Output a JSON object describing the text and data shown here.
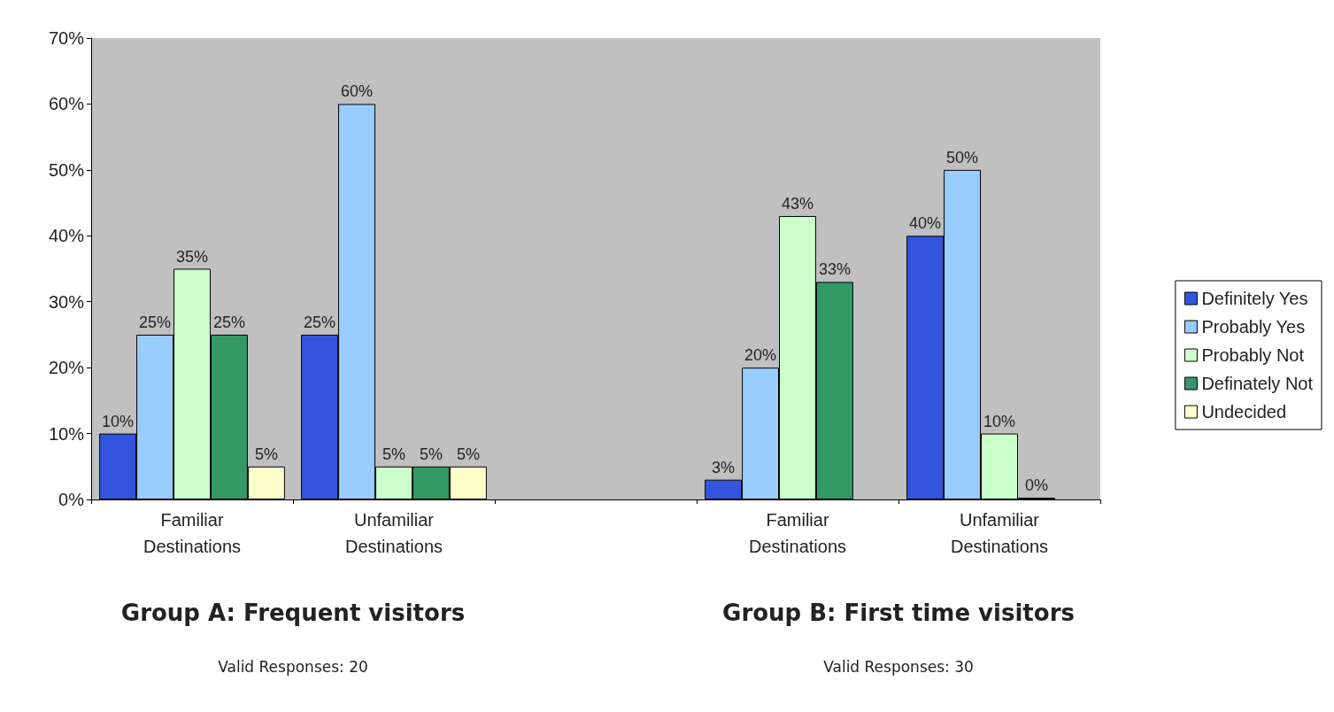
{
  "chart_data": {
    "type": "bar",
    "categories": [
      "Familiar Destinations",
      "Unfamiliar Destinations",
      null,
      "Familiar Destinations",
      "Unfamiliar Destinations"
    ],
    "series": [
      {
        "name": "Definitely Yes",
        "color": "#3355dd",
        "values": [
          10,
          25,
          null,
          3,
          40
        ],
        "value_labels": [
          "10%",
          "25%",
          null,
          "3%",
          "40%"
        ]
      },
      {
        "name": "Probably Yes",
        "color": "#99ccff",
        "values": [
          25,
          60,
          null,
          20,
          50
        ],
        "value_labels": [
          "25%",
          "60%",
          null,
          "20%",
          "50%"
        ]
      },
      {
        "name": "Probably Not",
        "color": "#ccffcc",
        "values": [
          35,
          5,
          null,
          43,
          10
        ],
        "value_labels": [
          "35%",
          "5%",
          null,
          "43%",
          "10%"
        ]
      },
      {
        "name": "Definately Not",
        "color": "#339966",
        "values": [
          25,
          5,
          null,
          33,
          0
        ],
        "value_labels": [
          "25%",
          "5%",
          null,
          "33%",
          "0%"
        ]
      },
      {
        "name": "Undecided",
        "color": "#ffffcc",
        "values": [
          5,
          5,
          null,
          null,
          null
        ],
        "value_labels": [
          "5%",
          "5%",
          null,
          null,
          null
        ]
      }
    ],
    "ylim": [
      0,
      70
    ],
    "yticks": [
      {
        "value": 0,
        "label": "0%"
      },
      {
        "value": 10,
        "label": "10%"
      },
      {
        "value": 20,
        "label": "20%"
      },
      {
        "value": 30,
        "label": "30%"
      },
      {
        "value": 40,
        "label": "40%"
      },
      {
        "value": 50,
        "label": "50%"
      },
      {
        "value": 60,
        "label": "60%"
      },
      {
        "value": 70,
        "label": "70%"
      }
    ],
    "grid": false,
    "legend": "right",
    "annotations": [
      "Group A: Frequent visitors",
      "Valid Responses: 20",
      "Group B: First time visitors",
      "Valid Responses: 30"
    ]
  }
}
